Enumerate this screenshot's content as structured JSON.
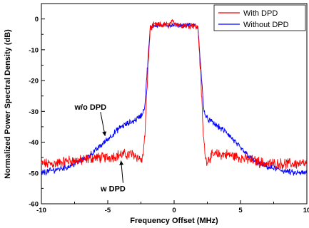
{
  "chart_data": {
    "type": "line",
    "xlabel": "Frequency Offset (MHz)",
    "ylabel": "Normalized Power Spectral Density (dB)",
    "xlim": [
      -10,
      10
    ],
    "ylim": [
      -60,
      5
    ],
    "xticks": [
      -10,
      -5,
      0,
      5,
      10
    ],
    "yticks": [
      0,
      -10,
      -20,
      -30,
      -40,
      -50,
      -60
    ],
    "grid": false,
    "legend_position": "top-right",
    "series": [
      {
        "name": "With DPD",
        "color": "#ff0000",
        "x": [
          -10,
          -9,
          -8,
          -7,
          -6,
          -5,
          -4,
          -3,
          -2.4,
          -2.2,
          -2.0,
          -1.8,
          -1.5,
          -1,
          -0.5,
          0,
          0.5,
          1,
          1.5,
          1.8,
          2.0,
          2.2,
          2.4,
          3,
          4,
          5,
          6,
          7,
          8,
          9,
          10
        ],
        "y": [
          -47,
          -47,
          -46,
          -46,
          -45,
          -45,
          -44,
          -44,
          -46,
          -38,
          -18,
          -3,
          -2,
          -2,
          -2,
          -1,
          -2,
          -2,
          -2,
          -3,
          -18,
          -38,
          -46,
          -44,
          -44,
          -45,
          -46,
          -47,
          -47,
          -47,
          -47
        ],
        "noise": 1.4,
        "flat_noise": 0.9
      },
      {
        "name": "Without DPD",
        "color": "#0000ff",
        "x": [
          -10,
          -9,
          -8,
          -7,
          -6,
          -5,
          -4,
          -3,
          -2.4,
          -2.2,
          -2.0,
          -1.8,
          -1.5,
          -1,
          -0.5,
          0,
          0.5,
          1,
          1.5,
          1.8,
          2.0,
          2.2,
          2.4,
          3,
          4,
          5,
          6,
          7,
          8,
          9,
          10
        ],
        "y": [
          -50,
          -49,
          -48,
          -46,
          -43,
          -39,
          -35,
          -33,
          -31,
          -28,
          -15,
          -3,
          -2,
          -2,
          -2,
          -2,
          -2,
          -2,
          -2,
          -3,
          -15,
          -28,
          -32,
          -34,
          -37,
          -42,
          -46,
          -48,
          -49,
          -50,
          -50
        ],
        "noise": 0.8,
        "flat_noise": 0.6
      }
    ],
    "annotations": [
      {
        "text": "w/o DPD",
        "at": [
          -6.3,
          -29.5
        ],
        "arrow_to": [
          -5.2,
          -38
        ]
      },
      {
        "text": "w DPD",
        "at": [
          -4.6,
          -56
        ],
        "arrow_to": [
          -4.0,
          -46
        ]
      }
    ]
  }
}
